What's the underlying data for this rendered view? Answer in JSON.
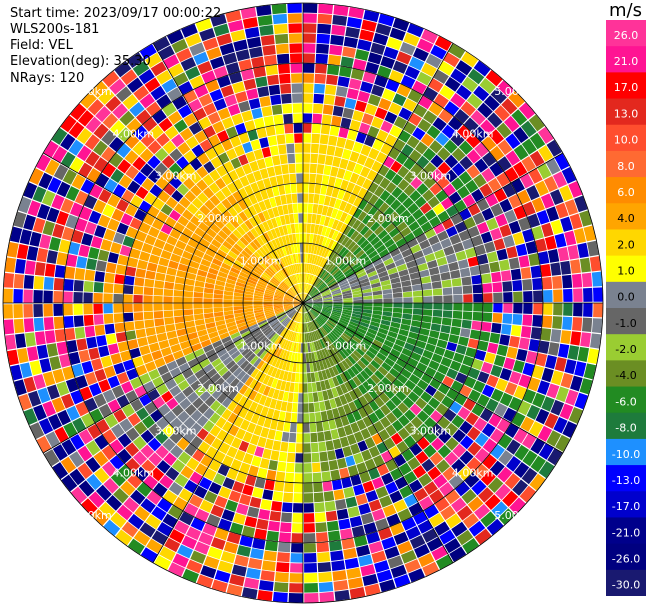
{
  "info": {
    "start_time": "Start time: 2023/09/17 00:00:22",
    "instrument": "WLS200s-181",
    "field": "Field: VEL",
    "elevation": "Elevation(deg): 35.30",
    "nrays": "NRays: 120"
  },
  "chart_data": {
    "type": "heatmap",
    "projection": "polar-ppi",
    "field": "VEL",
    "units": "m/s",
    "n_rays": 120,
    "elevation_deg": 35.3,
    "range_km": [
      0,
      5.5
    ],
    "range_ring_labels": [
      "1.00km",
      "2.00km",
      "3.00km",
      "4.00km",
      "5.00km"
    ],
    "colorbar": {
      "unit_label": "m/s",
      "ticks": [
        "26.0",
        "21.0",
        "17.0",
        "13.0",
        "10.0",
        "8.0",
        "6.0",
        "4.0",
        "2.0",
        "1.0",
        "0.0",
        "-1.0",
        "-2.0",
        "-4.0",
        "-6.0",
        "-8.0",
        "-10.0",
        "-13.0",
        "-17.0",
        "-21.0",
        "-26.0",
        "-30.0"
      ],
      "bins": [
        {
          "min": 26,
          "max": 30,
          "color": "#ff3399"
        },
        {
          "min": 21,
          "max": 26,
          "color": "#ff1493"
        },
        {
          "min": 17,
          "max": 21,
          "color": "#ff0000"
        },
        {
          "min": 13,
          "max": 17,
          "color": "#e3281e"
        },
        {
          "min": 10,
          "max": 13,
          "color": "#ff4e2e"
        },
        {
          "min": 8,
          "max": 10,
          "color": "#ff6a32"
        },
        {
          "min": 6,
          "max": 8,
          "color": "#ff8c00"
        },
        {
          "min": 4,
          "max": 6,
          "color": "#ffa500"
        },
        {
          "min": 2,
          "max": 4,
          "color": "#ffd700"
        },
        {
          "min": 1,
          "max": 2,
          "color": "#ffff00"
        },
        {
          "min": 0,
          "max": 1,
          "color": "#7a8290"
        },
        {
          "min": -1,
          "max": 0,
          "color": "#666666"
        },
        {
          "min": -2,
          "max": -1,
          "color": "#9acd32"
        },
        {
          "min": -4,
          "max": -2,
          "color": "#6b8e23"
        },
        {
          "min": -6,
          "max": -4,
          "color": "#228b22"
        },
        {
          "min": -8,
          "max": -6,
          "color": "#1e7b3c"
        },
        {
          "min": -10,
          "max": -8,
          "color": "#1e90ff"
        },
        {
          "min": -13,
          "max": -10,
          "color": "#0000ff"
        },
        {
          "min": -17,
          "max": -13,
          "color": "#0000cd"
        },
        {
          "min": -21,
          "max": -17,
          "color": "#00008b"
        },
        {
          "min": -26,
          "max": -21,
          "color": "#000080"
        },
        {
          "min": -30,
          "max": -26,
          "color": "#191970"
        }
      ]
    },
    "regions": [
      {
        "description": "west-north sector near radar",
        "velocity_range": [
          1,
          6
        ]
      },
      {
        "description": "east sector near radar",
        "velocity_range": [
          -6,
          -1
        ]
      },
      {
        "description": "far ranges noisy",
        "velocity_range": [
          -30,
          30
        ]
      }
    ]
  }
}
